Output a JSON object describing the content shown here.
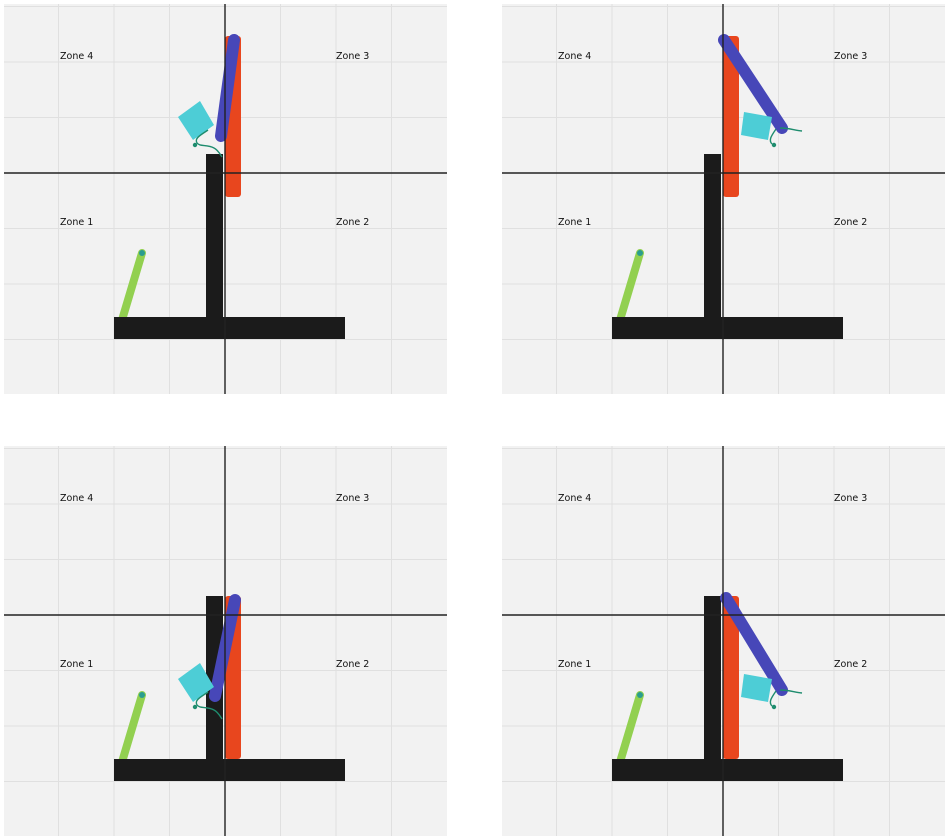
{
  "colors": {
    "background": "#f2f2f2",
    "grid": "#e0e0e0",
    "axis": "#222222",
    "base": "#1b1b1b",
    "column": "#1b1b1b",
    "orange_link": "#e8461e",
    "blue_link": "#4747b8",
    "gripper": "#4dcdd6",
    "cable": "#1e8c6e",
    "green_item": "#92d050",
    "green_item_cap": "#2a9d8f"
  },
  "panels": [
    {
      "zones": {
        "top_left": "Zone 4",
        "top_right": "Zone 3",
        "bottom_left": "Zone 1",
        "bottom_right": "Zone 2"
      },
      "column_height": "short",
      "blue_arm": "up",
      "gripper": "left"
    },
    {
      "zones": {
        "top_left": "Zone 4",
        "top_right": "Zone 3",
        "bottom_left": "Zone 1",
        "bottom_right": "Zone 2"
      },
      "column_height": "short",
      "blue_arm": "down-right",
      "gripper": "right"
    },
    {
      "zones": {
        "top_left": "Zone 4",
        "top_right": "Zone 3",
        "bottom_left": "Zone 1",
        "bottom_right": "Zone 2"
      },
      "column_height": "tall",
      "blue_arm": "down",
      "gripper": "left"
    },
    {
      "zones": {
        "top_left": "Zone 4",
        "top_right": "Zone 3",
        "bottom_left": "Zone 1",
        "bottom_right": "Zone 2"
      },
      "column_height": "tall",
      "blue_arm": "down-right",
      "gripper": "right"
    }
  ]
}
